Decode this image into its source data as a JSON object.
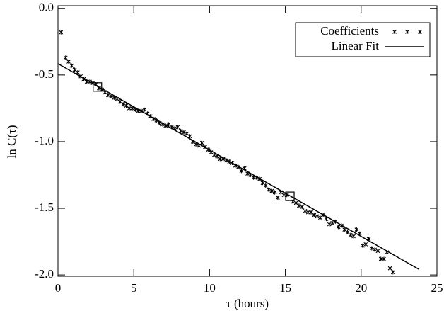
{
  "chart_data": {
    "type": "scatter",
    "xlabel": "τ (hours)",
    "ylabel": "ln C(τ)",
    "xlim": [
      0,
      25
    ],
    "ylim": [
      -2.01,
      0.02
    ],
    "xticks": [
      0,
      5,
      10,
      15,
      20,
      25
    ],
    "yticks": [
      {
        "value": 0,
        "label": "0.0"
      },
      -0.5,
      {
        "value": -1,
        "label": "-1.0"
      },
      -1.5,
      {
        "value": -2,
        "label": "-2.0"
      }
    ],
    "legend": "upper right",
    "series": [
      {
        "name": "Coefficients",
        "color": "#000000",
        "x": [
          0.2,
          0.5,
          0.7,
          0.9,
          1.1,
          1.3,
          1.5,
          1.7,
          1.9,
          2.1,
          2.3,
          2.5,
          2.7,
          2.9,
          3.1,
          3.3,
          3.5,
          3.7,
          3.9,
          4.1,
          4.3,
          4.5,
          4.7,
          4.9,
          5.1,
          5.3,
          5.5,
          5.7,
          5.9,
          6.1,
          6.3,
          6.5,
          6.7,
          6.9,
          7.1,
          7.3,
          7.5,
          7.7,
          7.9,
          8.1,
          8.3,
          8.5,
          8.7,
          8.9,
          9.1,
          9.3,
          9.5,
          9.7,
          9.9,
          10.1,
          10.3,
          10.5,
          10.7,
          10.9,
          11.1,
          11.3,
          11.5,
          11.7,
          11.9,
          12.1,
          12.3,
          12.5,
          12.7,
          12.9,
          13.1,
          13.3,
          13.5,
          13.7,
          13.9,
          14.1,
          14.3,
          14.5,
          14.7,
          14.9,
          15.1,
          15.5,
          15.7,
          15.9,
          16.1,
          16.3,
          16.5,
          16.7,
          16.9,
          17.1,
          17.3,
          17.5,
          17.7,
          17.9,
          18.1,
          18.3,
          18.5,
          18.7,
          18.9,
          19.1,
          19.3,
          19.5,
          19.7,
          19.9,
          20.1,
          20.3,
          20.5,
          20.7,
          20.9,
          21.1,
          21.3,
          21.5,
          21.7,
          21.9,
          22.1
        ],
        "values": [
          -0.18,
          -0.37,
          -0.4,
          -0.43,
          -0.46,
          -0.48,
          -0.51,
          -0.53,
          -0.55,
          -0.55,
          -0.56,
          -0.57,
          -0.6,
          -0.61,
          -0.63,
          -0.65,
          -0.66,
          -0.67,
          -0.68,
          -0.7,
          -0.72,
          -0.73,
          -0.75,
          -0.75,
          -0.76,
          -0.77,
          -0.77,
          -0.76,
          -0.79,
          -0.81,
          -0.83,
          -0.84,
          -0.86,
          -0.87,
          -0.88,
          -0.87,
          -0.89,
          -0.9,
          -0.89,
          -0.92,
          -0.93,
          -0.94,
          -0.96,
          -1.0,
          -1.02,
          -1.03,
          -1.01,
          -1.04,
          -1.06,
          -1.08,
          -1.1,
          -1.11,
          -1.13,
          -1.13,
          -1.14,
          -1.15,
          -1.16,
          -1.18,
          -1.19,
          -1.22,
          -1.2,
          -1.24,
          -1.25,
          -1.27,
          -1.27,
          -1.28,
          -1.31,
          -1.33,
          -1.36,
          -1.37,
          -1.38,
          -1.42,
          -1.38,
          -1.4,
          -1.4,
          -1.45,
          -1.46,
          -1.48,
          -1.49,
          -1.52,
          -1.53,
          -1.53,
          -1.55,
          -1.56,
          -1.57,
          -1.55,
          -1.58,
          -1.62,
          -1.61,
          -1.6,
          -1.64,
          -1.63,
          -1.66,
          -1.68,
          -1.7,
          -1.71,
          -1.66,
          -1.69,
          -1.78,
          -1.77,
          -1.73,
          -1.8,
          -1.81,
          -1.82,
          -1.88,
          -1.88,
          -1.83,
          -1.95,
          -1.98
        ]
      },
      {
        "name": "Linear Fit",
        "color": "#000000",
        "x": [
          0,
          23.8
        ],
        "values": [
          -0.415,
          -1.957
        ]
      }
    ],
    "highlights": {
      "x": [
        2.6,
        15.3
      ],
      "values": [
        -0.59,
        -1.41
      ]
    }
  }
}
